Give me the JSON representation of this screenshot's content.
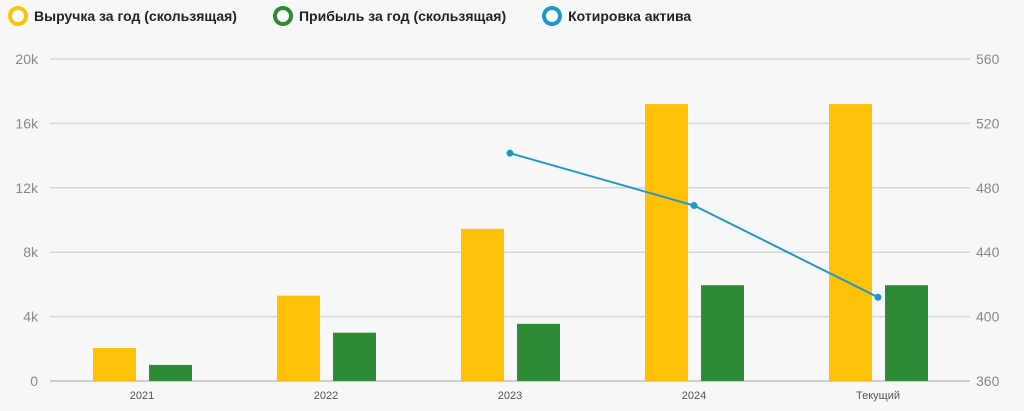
{
  "chart_data": {
    "type": "bar",
    "categories": [
      "2021",
      "2022",
      "2023",
      "2024",
      "Текущий"
    ],
    "series": [
      {
        "name": "Выручка за год (скользящая)",
        "type": "bar",
        "axis": "left",
        "color": "#ffc107",
        "values": [
          2050,
          5300,
          9450,
          17200,
          17200
        ]
      },
      {
        "name": "Прибыль за год (скользящая)",
        "type": "bar",
        "axis": "left",
        "color": "#2e8b35",
        "values": [
          1000,
          3000,
          3550,
          5950,
          5950
        ]
      },
      {
        "name": "Котировка актива",
        "type": "line",
        "axis": "right",
        "color": "#1f97c9",
        "values": [
          null,
          null,
          501.5,
          469,
          412
        ]
      }
    ],
    "left_axis": {
      "ylim": [
        0,
        20000
      ],
      "ticks": [
        "0",
        "4k",
        "8k",
        "12k",
        "16k",
        "20k"
      ]
    },
    "right_axis": {
      "ylim": [
        360,
        560
      ],
      "ticks": [
        "360",
        "400",
        "440",
        "480",
        "520",
        "560"
      ]
    },
    "grid": true,
    "legend": "top-left"
  }
}
